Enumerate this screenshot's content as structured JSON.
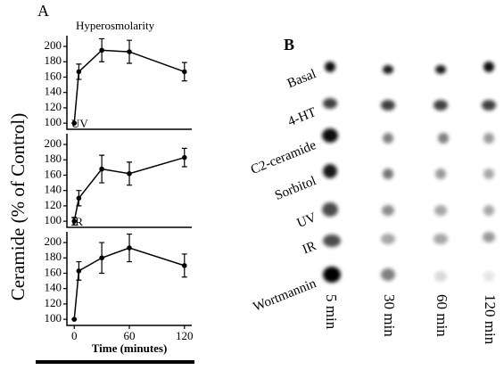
{
  "panel_a": {
    "label": "A",
    "ylabel": "Ceramide (% of Control)",
    "xlabel": "Time (minutes)"
  },
  "chart_data": [
    {
      "type": "line",
      "title": "Hyperosmolarity",
      "x": [
        0,
        5,
        30,
        60,
        120
      ],
      "values": [
        100,
        167,
        195,
        193,
        167
      ],
      "errors": [
        0,
        10,
        15,
        15,
        12
      ],
      "color": "#000000",
      "xlim": [
        -8,
        128
      ],
      "ylim": [
        92,
        214
      ],
      "yticks": [
        100,
        120,
        140,
        160,
        180,
        200
      ]
    },
    {
      "type": "line",
      "title": "UV",
      "x": [
        0,
        5,
        30,
        60,
        120
      ],
      "values": [
        100,
        130,
        168,
        162,
        183
      ],
      "errors": [
        5,
        10,
        18,
        15,
        12
      ],
      "color": "#000000",
      "xlim": [
        -8,
        128
      ],
      "ylim": [
        92,
        214
      ],
      "yticks": [
        100,
        120,
        140,
        160,
        180,
        200
      ]
    },
    {
      "type": "line",
      "title": "IR",
      "x": [
        0,
        5,
        30,
        60,
        120
      ],
      "values": [
        100,
        163,
        180,
        193,
        170
      ],
      "errors": [
        0,
        12,
        20,
        18,
        15
      ],
      "color": "#000000",
      "xlim": [
        -8,
        128
      ],
      "ylim": [
        92,
        214
      ],
      "yticks": [
        100,
        120,
        140,
        160,
        180,
        200
      ],
      "xticks": [
        0,
        60,
        120
      ]
    }
  ],
  "panel_b": {
    "label": "B",
    "rows": [
      "Basal",
      "4-HT",
      "C2-ceramide",
      "Sorbitol",
      "UV",
      "IR",
      "Wortmannin"
    ],
    "columns": [
      "5 min",
      "30 min",
      "60 min",
      "120 min"
    ]
  }
}
